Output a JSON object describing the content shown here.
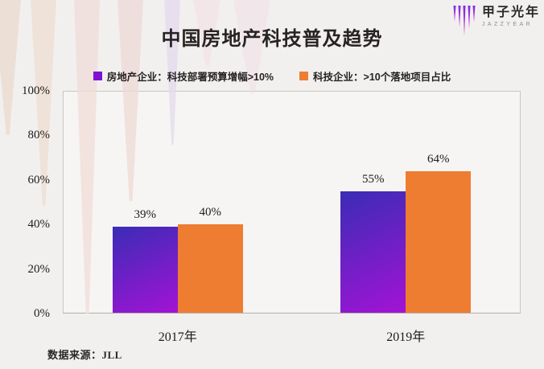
{
  "page": {
    "background": "#f2f0ef"
  },
  "header": {
    "title": "中国房地产科技普及趋势"
  },
  "logo": {
    "name": "甲子光年",
    "subtitle": "JAZZYEAR"
  },
  "legend": {
    "items": [
      {
        "label": "房地产企业：科技部署预算增幅>10%",
        "color": "#7d12d2"
      },
      {
        "label": "科技企业：>10个落地项目占比",
        "color": "#ed7d31"
      }
    ]
  },
  "chart_data": {
    "type": "bar",
    "title": "中国房地产科技普及趋势",
    "categories": [
      "2017年",
      "2019年"
    ],
    "series": [
      {
        "name": "房地产企业：科技部署预算增幅>10%",
        "values": [
          39,
          55
        ],
        "color_top": "#3a2cb6",
        "color_bottom": "#a313d5"
      },
      {
        "name": "科技企业：>10个落地项目占比",
        "values": [
          40,
          64
        ],
        "color": "#ee7d31"
      }
    ],
    "unit": "%",
    "ylabel": "",
    "ylim": [
      0,
      100
    ],
    "yticks": [
      "100%",
      "80%",
      "60%",
      "40%",
      "20%",
      "0%"
    ],
    "grid": false,
    "legend_position": "top"
  },
  "footer": {
    "source": "数据来源：JLL"
  }
}
